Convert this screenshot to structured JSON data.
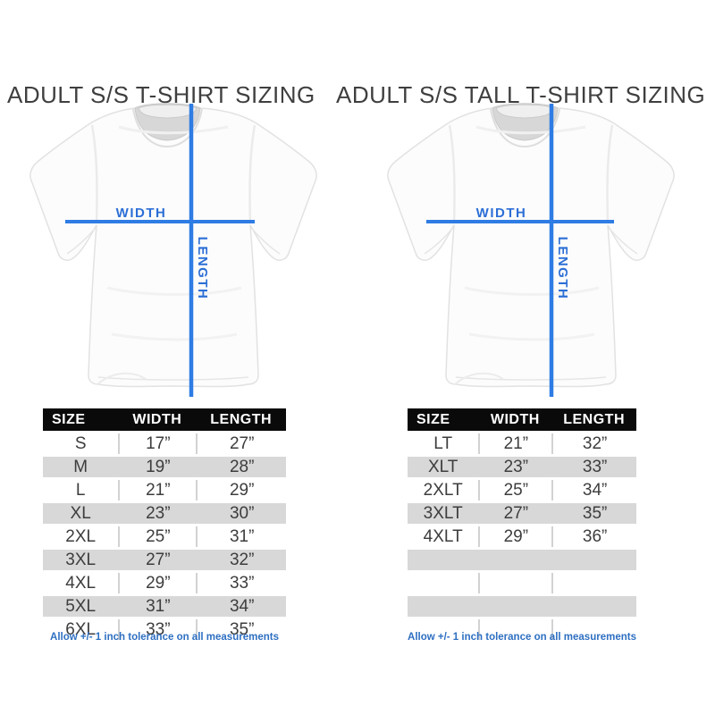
{
  "colors": {
    "accent_blue": "#2e7ce4",
    "footnote_blue": "#2e6fc2",
    "row_gray": "#d8d8d8",
    "header_black": "#0a0a0a",
    "title_gray": "#3f3f3f"
  },
  "chart_data": [
    {
      "type": "table",
      "title": "ADULT S/S T-SHIRT SIZING",
      "width_label": "WIDTH",
      "length_label": "LENGTH",
      "columns": [
        "SIZE",
        "WIDTH",
        "LENGTH"
      ],
      "rows": [
        [
          "S",
          "17”",
          "27”"
        ],
        [
          "M",
          "19”",
          "28”"
        ],
        [
          "L",
          "21”",
          "29”"
        ],
        [
          "XL",
          "23”",
          "30”"
        ],
        [
          "2XL",
          "25”",
          "31”"
        ],
        [
          "3XL",
          "27”",
          "32”"
        ],
        [
          "4XL",
          "29”",
          "33”"
        ],
        [
          "5XL",
          "31”",
          "34”"
        ],
        [
          "6XL",
          "33”",
          "35”"
        ]
      ],
      "footnote": "Allow +/- 1 inch tolerance on all measurements"
    },
    {
      "type": "table",
      "title": "ADULT S/S TALL T-SHIRT SIZING",
      "width_label": "WIDTH",
      "length_label": "LENGTH",
      "columns": [
        "SIZE",
        "WIDTH",
        "LENGTH"
      ],
      "rows": [
        [
          "LT",
          "21”",
          "32”"
        ],
        [
          "XLT",
          "23”",
          "33”"
        ],
        [
          "2XLT",
          "25”",
          "34”"
        ],
        [
          "3XLT",
          "27”",
          "35”"
        ],
        [
          "4XLT",
          "29”",
          "36”"
        ],
        [
          "",
          "",
          ""
        ],
        [
          "",
          "",
          ""
        ],
        [
          "",
          "",
          ""
        ],
        [
          "",
          "",
          ""
        ]
      ],
      "footnote": "Allow +/- 1 inch tolerance on all measurements"
    }
  ]
}
